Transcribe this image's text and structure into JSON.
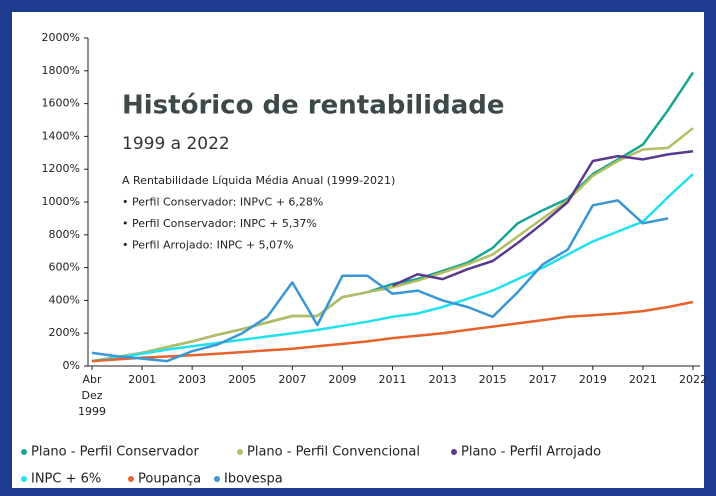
{
  "chart_data": {
    "type": "line",
    "title": "Histórico de rentabilidade",
    "subtitle": "1999 a 2022",
    "annotations": [
      "A Rentabilidade Líquida Média Anual (1999-2021)",
      "• Perfil Conservador: INPvC + 6,28%",
      "• Perfil Conservador: INPC + 5,37%",
      "• Perfil Arrojado: INPC + 5,07%"
    ],
    "categories": [
      "Abr Dez 1999",
      null,
      "2001",
      null,
      "2003",
      null,
      "2005",
      null,
      "2007",
      null,
      "2009",
      null,
      "2011",
      null,
      "2013",
      null,
      "2015",
      null,
      "2017",
      null,
      "2019",
      null,
      "2021",
      null,
      "2022"
    ],
    "ylim": [
      0,
      2000
    ],
    "yticks": [
      {
        "value": 0,
        "label": "0%"
      },
      {
        "value": 200,
        "label": "200%"
      },
      {
        "value": 400,
        "label": "400%"
      },
      {
        "value": 600,
        "label": "600%"
      },
      {
        "value": 800,
        "label": "800%"
      },
      {
        "value": 1000,
        "label": "1000%"
      },
      {
        "value": 1200,
        "label": "1200%"
      },
      {
        "value": 1400,
        "label": "1400%"
      },
      {
        "value": 1600,
        "label": "1600%"
      },
      {
        "value": 1800,
        "label": "1800%"
      },
      {
        "value": 2000,
        "label": "2000%"
      }
    ],
    "series": [
      {
        "name": "Plano - Perfil Conservador",
        "color": "#17a592",
        "values": [
          30,
          55,
          80,
          115,
          150,
          190,
          225,
          265,
          305,
          305,
          420,
          450,
          500,
          530,
          580,
          630,
          720,
          870,
          950,
          1020,
          1170,
          1260,
          1350,
          1560,
          1790
        ]
      },
      {
        "name": "Plano - Perfil Convencional",
        "color": "#b5bd64",
        "values": [
          30,
          55,
          80,
          115,
          150,
          190,
          225,
          265,
          305,
          305,
          420,
          450,
          480,
          520,
          570,
          620,
          680,
          790,
          900,
          1010,
          1160,
          1250,
          1320,
          1330,
          1450
        ]
      },
      {
        "name": "Plano - Perfil Arrojado",
        "color": "#5b3a8e",
        "values": [
          null,
          null,
          null,
          null,
          null,
          null,
          null,
          null,
          null,
          null,
          null,
          null,
          490,
          560,
          530,
          590,
          640,
          750,
          870,
          1000,
          1250,
          1280,
          1260,
          1290,
          1310
        ]
      },
      {
        "name": "INPC + 6%",
        "color": "#22e0ee",
        "values": [
          30,
          50,
          75,
          100,
          120,
          140,
          160,
          180,
          200,
          220,
          245,
          270,
          300,
          320,
          360,
          410,
          460,
          530,
          600,
          680,
          760,
          820,
          880,
          1030,
          1170
        ]
      },
      {
        "name": "Poupança",
        "color": "#e8622c",
        "values": [
          30,
          40,
          50,
          58,
          65,
          75,
          85,
          95,
          105,
          120,
          135,
          150,
          170,
          185,
          200,
          220,
          240,
          260,
          280,
          300,
          310,
          320,
          335,
          360,
          390
        ]
      },
      {
        "name": "Ibovespa",
        "color": "#3b97d3",
        "values": [
          80,
          60,
          45,
          30,
          90,
          130,
          200,
          300,
          510,
          250,
          550,
          550,
          440,
          460,
          400,
          360,
          300,
          450,
          620,
          710,
          980,
          1010,
          870,
          900,
          null
        ]
      }
    ]
  }
}
